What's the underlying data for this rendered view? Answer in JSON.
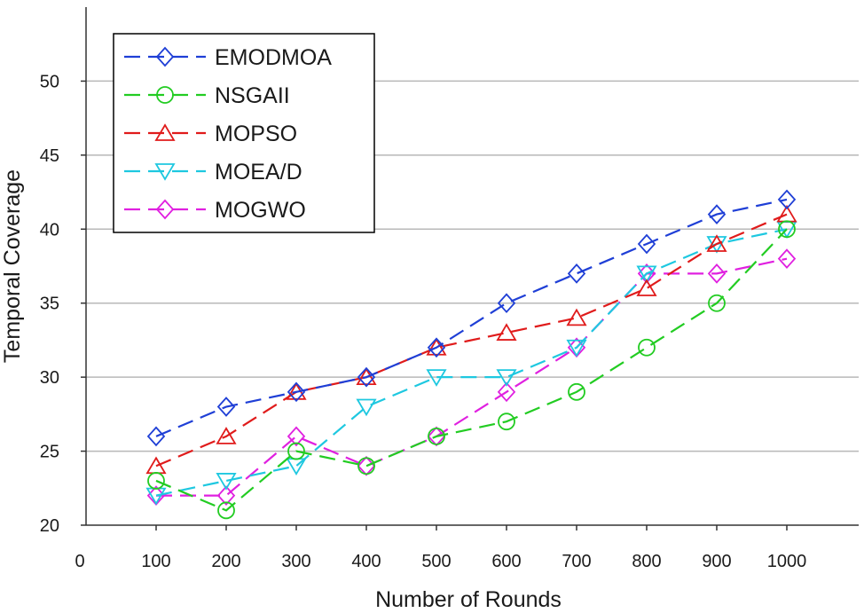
{
  "chart_data": {
    "type": "line",
    "title": "",
    "xlabel": "Number of Rounds",
    "ylabel": "Temporal Coverage",
    "xlim": [
      0,
      1100
    ],
    "ylim": [
      20,
      55
    ],
    "x_ticks": [
      0,
      100,
      200,
      300,
      400,
      500,
      600,
      700,
      800,
      900,
      1000
    ],
    "x_tick_labels": [
      "0",
      "100",
      "200",
      "300",
      "400",
      "500",
      "600",
      "700",
      "800",
      "900",
      "1000"
    ],
    "y_ticks": [
      20,
      25,
      30,
      35,
      40,
      45,
      50
    ],
    "y_tick_labels": [
      "20",
      "25",
      "30",
      "35",
      "40",
      "45",
      "50"
    ],
    "grid": "horizontal",
    "legend_position": "top-left",
    "x": [
      100,
      200,
      300,
      400,
      500,
      600,
      700,
      800,
      900,
      1000
    ],
    "series": [
      {
        "name": "EMODMOA",
        "color": "#1f3fd6",
        "marker": "diamond",
        "values": [
          26,
          28,
          29,
          30,
          32,
          35,
          37,
          39,
          41,
          42
        ]
      },
      {
        "name": "NSGAII",
        "color": "#22cc22",
        "marker": "circle",
        "values": [
          23,
          21,
          25,
          24,
          26,
          27,
          29,
          32,
          35,
          40
        ]
      },
      {
        "name": "MOPSO",
        "color": "#e01b1b",
        "marker": "triangle-up",
        "values": [
          24,
          26,
          29,
          30,
          32,
          33,
          34,
          36,
          39,
          41
        ]
      },
      {
        "name": "MOEA/D",
        "color": "#1ec8e0",
        "marker": "triangle-down",
        "values": [
          22,
          23,
          24,
          28,
          30,
          30,
          32,
          37,
          39,
          40
        ]
      },
      {
        "name": "MOGWO",
        "color": "#e020e0",
        "marker": "diamond",
        "values": [
          22,
          22,
          26,
          24,
          26,
          29,
          32,
          37,
          37,
          38
        ]
      }
    ]
  }
}
